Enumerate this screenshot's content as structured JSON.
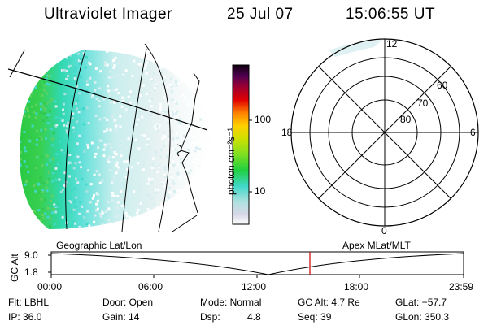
{
  "header": {
    "title": "Ultraviolet Imager",
    "date": "25 Jul 07",
    "time": "15:06:55 UT"
  },
  "colorbar": {
    "label": "photon cm⁻²s⁻¹",
    "ticks": [
      "100",
      "10"
    ],
    "colors": [
      "#ffffff",
      "#d8d8e8",
      "#b0e0e0",
      "#40d8c8",
      "#20d040",
      "#80e020",
      "#d0e000",
      "#ffd000",
      "#ff8000",
      "#e00000",
      "#a00030",
      "#500050",
      "#100010"
    ]
  },
  "polar": {
    "labels": {
      "top": "12",
      "bottom": "0",
      "left": "18",
      "right": "6"
    },
    "lat_labels": [
      "60",
      "70",
      "80"
    ]
  },
  "timeline": {
    "left_label": "Geographic Lat/Lon",
    "right_label": "Apex MLat/MLT",
    "axis_title": "GC Alt",
    "y_ticks": [
      "9.0",
      "1.8"
    ],
    "x_ticks": [
      "00:00",
      "06:00",
      "12:00",
      "18:00",
      "23:59"
    ],
    "marker_color": "#cc0000"
  },
  "info": {
    "row1": {
      "filter": "Flt: LBHL",
      "door": "Door: Open",
      "mode": "Mode: Normal",
      "gcalt": "GC Alt: 4.7 Re",
      "glat": "GLat: −57.7"
    },
    "row2": {
      "ip": "IP: 36.0",
      "gain": "Gain: 14",
      "dsp_label": "Dsp:",
      "dsp_value": "4.8",
      "seq": "Seq: 39",
      "glon": "GLon: 350.3"
    }
  }
}
